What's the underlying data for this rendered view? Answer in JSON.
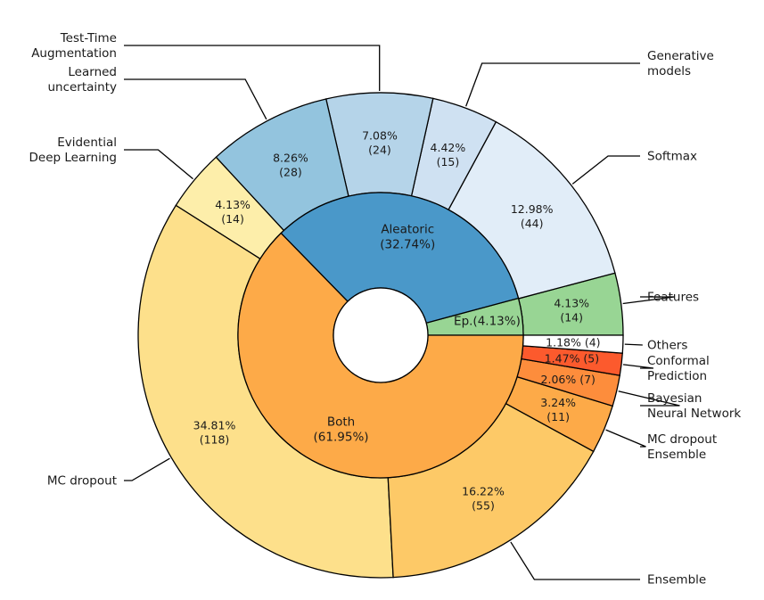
{
  "chart_data": {
    "type": "pie",
    "subtype": "nested-donut",
    "title": "",
    "start_angle_deg": 0,
    "direction": "counterclockwise",
    "inner_ring": [
      {
        "name": "Ep.",
        "label": "Ep.(4.13%)",
        "value": 4.13,
        "color": "#98d594"
      },
      {
        "name": "Aleatoric",
        "label": "Aleatoric\n(32.74%)",
        "value": 32.74,
        "color": "#4a98c9"
      },
      {
        "name": "Both",
        "label": "Both\n(61.95%)",
        "value": 61.95,
        "color": "#fdaa48"
      }
    ],
    "outer_ring": [
      {
        "name": "Features",
        "label": "Features",
        "percent": "4.13%",
        "count": 14,
        "value": 4.13,
        "color": "#98d594"
      },
      {
        "name": "Softmax",
        "label": "Softmax",
        "percent": "12.98%",
        "count": 44,
        "value": 12.98,
        "color": "#e1edf8"
      },
      {
        "name": "Generative models",
        "label": "Generative\nmodels",
        "percent": "4.42%",
        "count": 15,
        "value": 4.42,
        "color": "#cfe1f2"
      },
      {
        "name": "Test-Time Augmentation",
        "label": "Test-Time\nAugmentation",
        "percent": "7.08%",
        "count": 24,
        "value": 7.08,
        "color": "#b5d4e9"
      },
      {
        "name": "Learned uncertainty",
        "label": "Learned\nuncertainty",
        "percent": "8.26%",
        "count": 28,
        "value": 8.26,
        "color": "#93c4de"
      },
      {
        "name": "Evidential Deep Learning",
        "label": "Evidential\nDeep Learning",
        "percent": "4.13%",
        "count": 14,
        "value": 4.13,
        "color": "#fdeeaa"
      },
      {
        "name": "MC dropout",
        "label": "MC dropout",
        "percent": "34.81%",
        "count": 118,
        "value": 34.81,
        "color": "#fde08b"
      },
      {
        "name": "Ensemble",
        "label": "Ensemble",
        "percent": "16.22%",
        "count": 55,
        "value": 16.22,
        "color": "#fdc967"
      },
      {
        "name": "MC dropout Ensemble",
        "label": "MC dropout\nEnsemble",
        "percent": "3.24%",
        "count": 11,
        "value": 3.24,
        "color": "#fdaa48"
      },
      {
        "name": "Bayesian Neural Network",
        "label": "Bayesian\nNeural Network",
        "percent": "2.06%",
        "count": 7,
        "value": 2.06,
        "color": "#fd8d3c"
      },
      {
        "name": "Conformal Prediction",
        "label": "Conformal\nPrediction",
        "percent": "1.47%",
        "count": 5,
        "value": 1.47,
        "color": "#fc5a2d"
      },
      {
        "name": "Others",
        "label": "Others",
        "percent": "1.18%",
        "count": 4,
        "value": 1.18,
        "color": "#ffffff"
      }
    ]
  }
}
